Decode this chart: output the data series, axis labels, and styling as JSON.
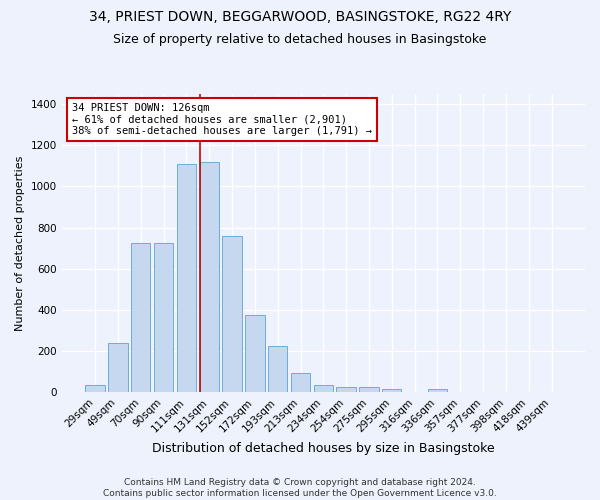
{
  "title": "34, PRIEST DOWN, BEGGARWOOD, BASINGSTOKE, RG22 4RY",
  "subtitle": "Size of property relative to detached houses in Basingstoke",
  "xlabel": "Distribution of detached houses by size in Basingstoke",
  "ylabel": "Number of detached properties",
  "categories": [
    "29sqm",
    "49sqm",
    "70sqm",
    "90sqm",
    "111sqm",
    "131sqm",
    "152sqm",
    "172sqm",
    "193sqm",
    "213sqm",
    "234sqm",
    "254sqm",
    "275sqm",
    "295sqm",
    "316sqm",
    "336sqm",
    "357sqm",
    "377sqm",
    "398sqm",
    "418sqm",
    "439sqm"
  ],
  "values": [
    35,
    240,
    725,
    725,
    1110,
    1120,
    760,
    375,
    225,
    90,
    33,
    25,
    22,
    13,
    0,
    12,
    0,
    0,
    0,
    0,
    0
  ],
  "bar_color": "#c5d8f0",
  "bar_edge_color": "#6baed6",
  "property_label": "34 PRIEST DOWN: 126sqm",
  "annotation_line1": "← 61% of detached houses are smaller (2,901)",
  "annotation_line2": "38% of semi-detached houses are larger (1,791) →",
  "annotation_box_color": "#ffffff",
  "annotation_box_edge": "#cc0000",
  "vline_color": "#cc0000",
  "vline_x_index": 5,
  "background_color": "#eef2fc",
  "grid_color": "#ffffff",
  "ylim": [
    0,
    1450
  ],
  "yticks": [
    0,
    200,
    400,
    600,
    800,
    1000,
    1200,
    1400
  ],
  "footer1": "Contains HM Land Registry data © Crown copyright and database right 2024.",
  "footer2": "Contains public sector information licensed under the Open Government Licence v3.0.",
  "title_fontsize": 10,
  "subtitle_fontsize": 9,
  "xlabel_fontsize": 9,
  "ylabel_fontsize": 8,
  "tick_fontsize": 7.5,
  "footer_fontsize": 6.5,
  "annot_fontsize": 7.5
}
